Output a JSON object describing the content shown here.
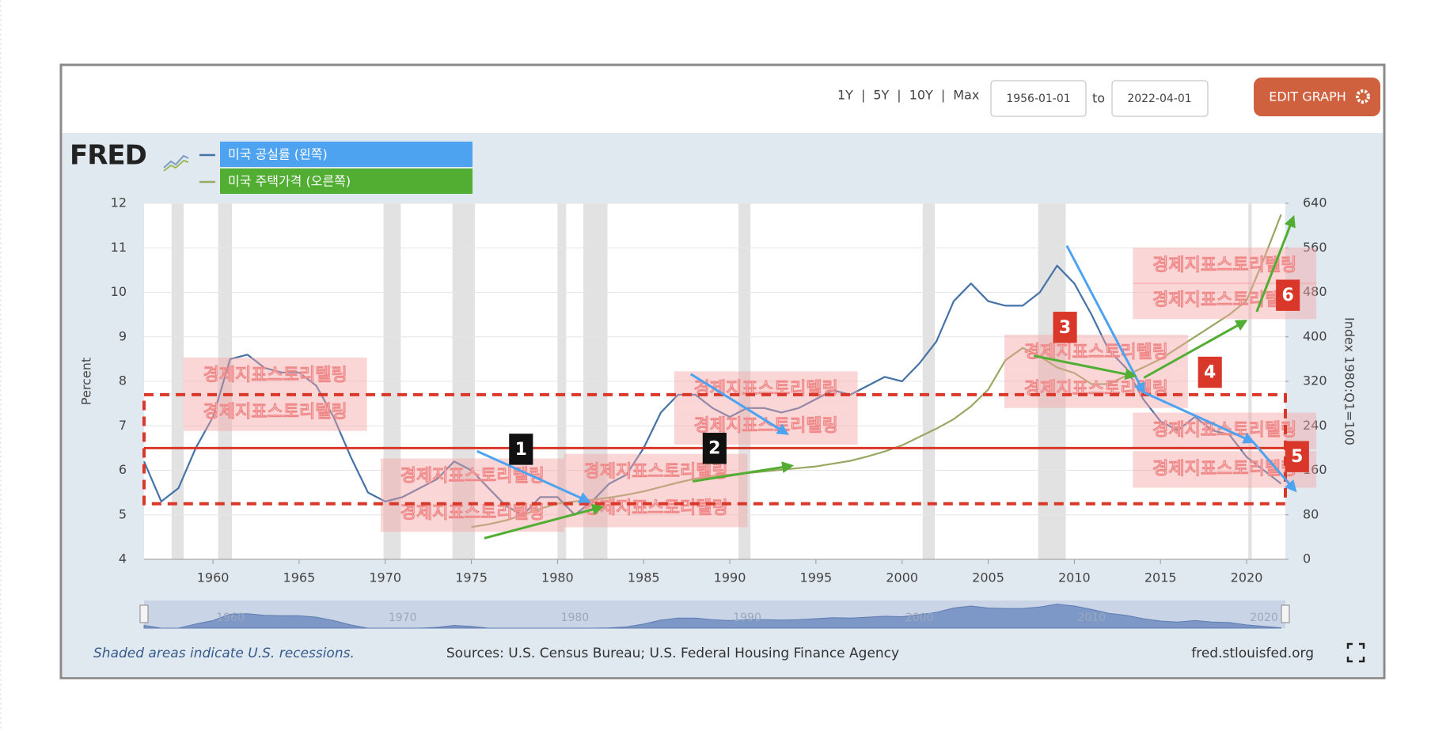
{
  "toolbar": {
    "ranges": [
      "1Y",
      "5Y",
      "10Y",
      "Max"
    ],
    "separator": "|",
    "start": "1956-01-01",
    "to": "to",
    "end": "2022-04-01",
    "edit": "EDIT GRAPH"
  },
  "logo": "FRED",
  "footer": {
    "note": "Shaded areas indicate U.S. recessions.",
    "sources": "Sources: U.S. Census Bureau; U.S. Federal Housing Finance Agency",
    "site": "fred.stlouisfed.org"
  },
  "chart_data": {
    "type": "line",
    "y_label": "Percent",
    "y2_label": "Index 1980:Q1=100",
    "x": [
      1956,
      1957,
      1958,
      1959,
      1960,
      1961,
      1962,
      1963,
      1964,
      1965,
      1966,
      1967,
      1968,
      1969,
      1970,
      1971,
      1972,
      1973,
      1974,
      1975,
      1976,
      1977,
      1978,
      1979,
      1980,
      1981,
      1982,
      1983,
      1984,
      1985,
      1986,
      1987,
      1988,
      1989,
      1990,
      1991,
      1992,
      1993,
      1994,
      1995,
      1996,
      1997,
      1998,
      1999,
      2000,
      2001,
      2002,
      2003,
      2004,
      2005,
      2006,
      2007,
      2008,
      2009,
      2010,
      2011,
      2012,
      2013,
      2014,
      2015,
      2016,
      2017,
      2018,
      2019,
      2020,
      2021,
      2022
    ],
    "series": [
      {
        "name": "미국 공실률 (왼쪽)",
        "color": "#4572a7",
        "legend_fill": "#4da3f0",
        "values": [
          6.2,
          5.3,
          5.6,
          6.5,
          7.2,
          8.5,
          8.6,
          8.3,
          8.2,
          8.2,
          7.9,
          7.2,
          6.3,
          5.5,
          5.3,
          5.4,
          5.6,
          5.8,
          6.2,
          6.0,
          5.6,
          5.2,
          5.0,
          5.4,
          5.4,
          5.0,
          5.3,
          5.7,
          5.9,
          6.5,
          7.3,
          7.7,
          7.7,
          7.4,
          7.2,
          7.4,
          7.4,
          7.3,
          7.4,
          7.6,
          7.8,
          7.7,
          7.9,
          8.1,
          8.0,
          8.4,
          8.9,
          9.8,
          10.2,
          9.8,
          9.7,
          9.7,
          10.0,
          10.6,
          10.2,
          9.5,
          8.7,
          8.3,
          7.6,
          7.1,
          6.9,
          7.2,
          6.9,
          6.8,
          6.3,
          6.0,
          5.7
        ]
      },
      {
        "name": "미국 주택가격 (오른쪽)",
        "color": "#98a862",
        "legend_fill": "#52ad33",
        "axis": "y2",
        "values": [
          null,
          null,
          null,
          null,
          null,
          null,
          null,
          null,
          null,
          null,
          null,
          null,
          null,
          null,
          null,
          null,
          null,
          null,
          null,
          58,
          63,
          70,
          80,
          91,
          100,
          104,
          107,
          111,
          116,
          122,
          130,
          138,
          145,
          150,
          152,
          155,
          158,
          161,
          164,
          167,
          172,
          177,
          185,
          194,
          205,
          220,
          235,
          252,
          275,
          305,
          358,
          380,
          365,
          345,
          335,
          315,
          315,
          330,
          345,
          360,
          380,
          400,
          420,
          440,
          465,
          540,
          620
        ]
      }
    ],
    "xlim": [
      1956,
      2022.25
    ],
    "xticks": [
      1960,
      1965,
      1970,
      1975,
      1980,
      1985,
      1990,
      1995,
      2000,
      2005,
      2010,
      2015,
      2020
    ],
    "ylim": [
      4,
      12
    ],
    "yticks": [
      4,
      5,
      6,
      7,
      8,
      9,
      10,
      11,
      12
    ],
    "y2lim": [
      0,
      640
    ],
    "y2ticks": [
      0,
      80,
      160,
      240,
      320,
      400,
      480,
      560,
      640
    ],
    "grid": true,
    "recessions": [
      [
        1957.6,
        1958.3
      ],
      [
        1960.3,
        1961.1
      ],
      [
        1969.9,
        1970.9
      ],
      [
        1973.9,
        1975.2
      ],
      [
        1980.0,
        1980.5
      ],
      [
        1981.5,
        1982.9
      ],
      [
        1990.5,
        1991.2
      ],
      [
        2001.2,
        2001.9
      ],
      [
        2007.9,
        2009.5
      ],
      [
        2020.1,
        2020.3
      ]
    ],
    "navigator_ticks": [
      1960,
      1970,
      1980,
      1990,
      2000,
      2010,
      2020
    ],
    "reference_line": 6.5,
    "band": [
      5.25,
      7.7
    ],
    "annotations": [
      {
        "label": "1",
        "color": "#111111"
      },
      {
        "label": "2",
        "color": "#111111"
      },
      {
        "label": "3",
        "color": "#d9372a"
      },
      {
        "label": "4",
        "color": "#d9372a"
      },
      {
        "label": "5",
        "color": "#d9372a"
      },
      {
        "label": "6",
        "color": "#d9372a"
      }
    ],
    "watermarks": [
      "경제지표스토리텔링",
      "경제지표스토리텔링",
      "경제지표스토리텔링",
      "경제지표스토리텔링",
      "경제지표스토리텔링",
      "경제지표스토리텔링",
      "경제지표스토리텔링",
      "경제지표스토리텔링",
      "경제지표스토리텔링",
      "경제지표스토리텔링",
      "경제지표스토리텔링",
      "경제지표스토리텔링",
      "경제지표스토리텔링",
      "경제지표스토리텔링"
    ]
  }
}
